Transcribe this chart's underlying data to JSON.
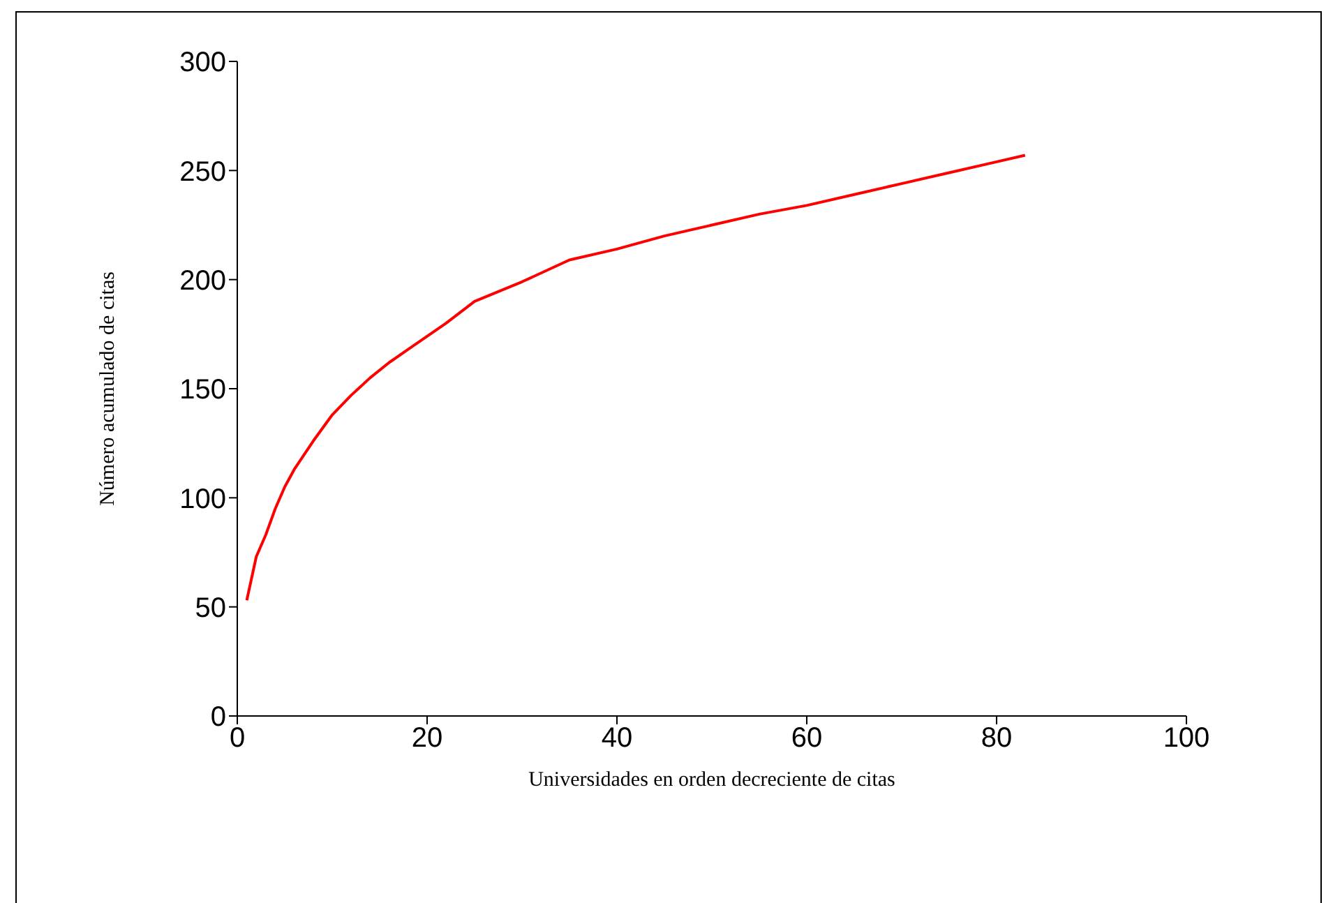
{
  "chart_data": {
    "type": "line",
    "xlabel": "Universidades en orden decreciente de citas",
    "ylabel": "Número acumulado de citas",
    "x": [
      1,
      2,
      3,
      4,
      5,
      6,
      8,
      10,
      12,
      14,
      16,
      18,
      20,
      22,
      25,
      30,
      35,
      40,
      45,
      50,
      55,
      60,
      65,
      70,
      75,
      80,
      83
    ],
    "series": [
      {
        "color": "#ff0000",
        "values": [
          53,
          73,
          83,
          95,
          105,
          113,
          126,
          138,
          147,
          155,
          162,
          168,
          174,
          180,
          190,
          199,
          209,
          214,
          220,
          225,
          230,
          234,
          239,
          244,
          249,
          254,
          257
        ]
      }
    ],
    "xlim": [
      0,
      100
    ],
    "xticks": [
      0,
      20,
      40,
      60,
      80,
      100
    ],
    "ylim": [
      0,
      300
    ],
    "yticks": [
      0,
      50,
      100,
      150,
      200,
      250,
      300
    ],
    "grid": false,
    "legend": false,
    "marker": "none",
    "line_style": "solid"
  }
}
